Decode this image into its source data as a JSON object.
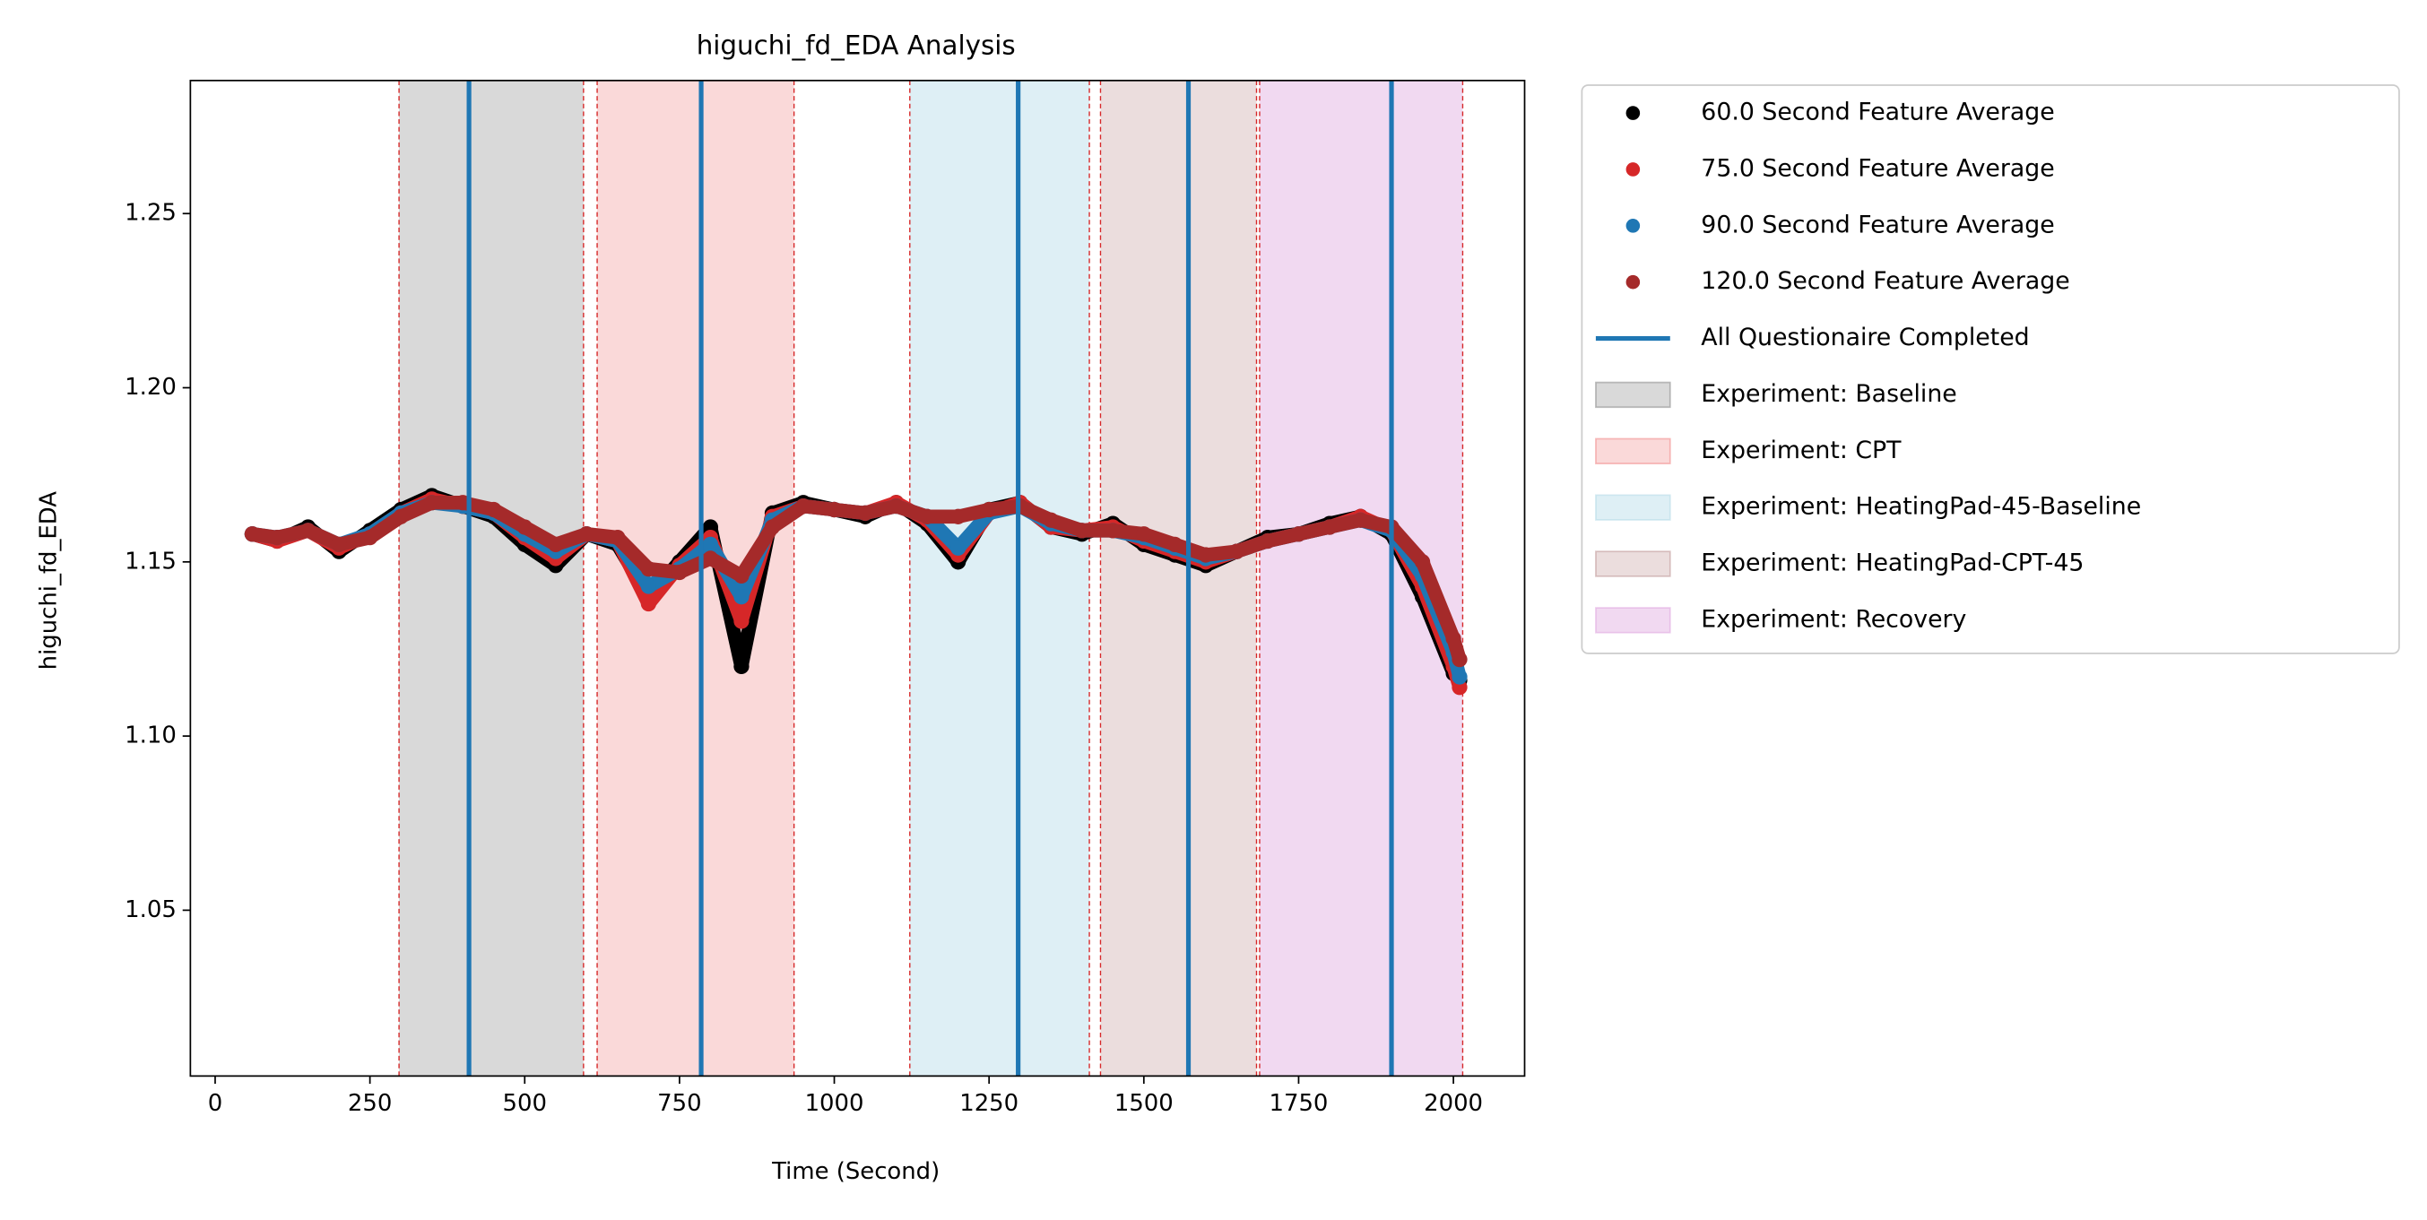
{
  "chart_data": {
    "type": "scatter",
    "title": "higuchi_fd_EDA Analysis",
    "xlabel": "Time (Second)",
    "ylabel": "higuchi_fd_EDA",
    "x": [
      60,
      100,
      150,
      200,
      250,
      300,
      350,
      400,
      450,
      500,
      550,
      600,
      650,
      700,
      750,
      800,
      850,
      900,
      950,
      1000,
      1050,
      1100,
      1150,
      1200,
      1250,
      1300,
      1350,
      1400,
      1450,
      1500,
      1550,
      1600,
      1650,
      1700,
      1750,
      1800,
      1850,
      1900,
      1950,
      2000,
      2010
    ],
    "series": [
      {
        "name": "60.0 Second Feature Average",
        "color": "#000000",
        "values": [
          1.158,
          1.156,
          1.16,
          1.153,
          1.159,
          1.165,
          1.169,
          1.166,
          1.163,
          1.155,
          1.149,
          1.158,
          1.155,
          1.14,
          1.15,
          1.16,
          1.12,
          1.164,
          1.167,
          1.165,
          1.163,
          1.167,
          1.161,
          1.15,
          1.165,
          1.167,
          1.16,
          1.158,
          1.161,
          1.155,
          1.152,
          1.149,
          1.153,
          1.157,
          1.158,
          1.161,
          1.163,
          1.158,
          1.14,
          1.118,
          1.116
        ]
      },
      {
        "name": "75.0 Second Feature Average",
        "color": "#d62728",
        "values": [
          1.158,
          1.156,
          1.159,
          1.154,
          1.158,
          1.164,
          1.168,
          1.166,
          1.164,
          1.157,
          1.151,
          1.158,
          1.156,
          1.138,
          1.149,
          1.157,
          1.133,
          1.163,
          1.166,
          1.165,
          1.164,
          1.167,
          1.162,
          1.152,
          1.164,
          1.167,
          1.16,
          1.159,
          1.16,
          1.156,
          1.153,
          1.15,
          1.153,
          1.156,
          1.158,
          1.16,
          1.163,
          1.159,
          1.143,
          1.12,
          1.114
        ]
      },
      {
        "name": "90.0 Second Feature Average",
        "color": "#1f77b4",
        "values": [
          1.158,
          1.157,
          1.159,
          1.155,
          1.158,
          1.164,
          1.167,
          1.166,
          1.164,
          1.158,
          1.153,
          1.158,
          1.156,
          1.143,
          1.148,
          1.155,
          1.14,
          1.162,
          1.166,
          1.165,
          1.164,
          1.166,
          1.163,
          1.154,
          1.164,
          1.166,
          1.161,
          1.159,
          1.159,
          1.157,
          1.154,
          1.151,
          1.153,
          1.156,
          1.158,
          1.16,
          1.162,
          1.159,
          1.146,
          1.124,
          1.117
        ]
      },
      {
        "name": "120.0 Second Feature Average",
        "color": "#a52a2a",
        "values": [
          1.158,
          1.157,
          1.159,
          1.155,
          1.157,
          1.163,
          1.167,
          1.167,
          1.165,
          1.16,
          1.155,
          1.158,
          1.157,
          1.148,
          1.147,
          1.151,
          1.146,
          1.16,
          1.166,
          1.165,
          1.164,
          1.166,
          1.163,
          1.163,
          1.165,
          1.166,
          1.162,
          1.159,
          1.159,
          1.158,
          1.155,
          1.152,
          1.153,
          1.156,
          1.158,
          1.16,
          1.162,
          1.16,
          1.15,
          1.128,
          1.122
        ]
      }
    ],
    "vlines": {
      "name": "All Questionaire Completed",
      "color": "#1f77b4",
      "x": [
        410,
        785,
        1297,
        1572,
        1900
      ]
    },
    "regions": [
      {
        "name": "Experiment: Baseline",
        "start": 297,
        "end": 595,
        "color": "#808080",
        "alpha": 0.3
      },
      {
        "name": "Experiment: CPT",
        "start": 617,
        "end": 935,
        "color": "#f08080",
        "alpha": 0.3
      },
      {
        "name": "Experiment: HeatingPad-45-Baseline",
        "start": 1122,
        "end": 1412,
        "color": "#add8e6",
        "alpha": 0.4
      },
      {
        "name": "Experiment: HeatingPad-CPT-45",
        "start": 1430,
        "end": 1682,
        "color": "#bc8f8f",
        "alpha": 0.3
      },
      {
        "name": "Experiment: Recovery",
        "start": 1687,
        "end": 2015,
        "color": "#dda0dd",
        "alpha": 0.4
      }
    ],
    "region_edge_color": "#d62728",
    "xlim": [
      -40,
      2115
    ],
    "ylim": [
      1.0024,
      1.2882
    ],
    "xticks": [
      0,
      250,
      500,
      750,
      1000,
      1250,
      1500,
      1750,
      2000
    ],
    "yticks": [
      1.05,
      {
        "value": 1.1,
        "label": "1.10"
      },
      1.15,
      {
        "value": 1.2,
        "label": "1.20"
      },
      1.25
    ],
    "legend": "outside right"
  }
}
